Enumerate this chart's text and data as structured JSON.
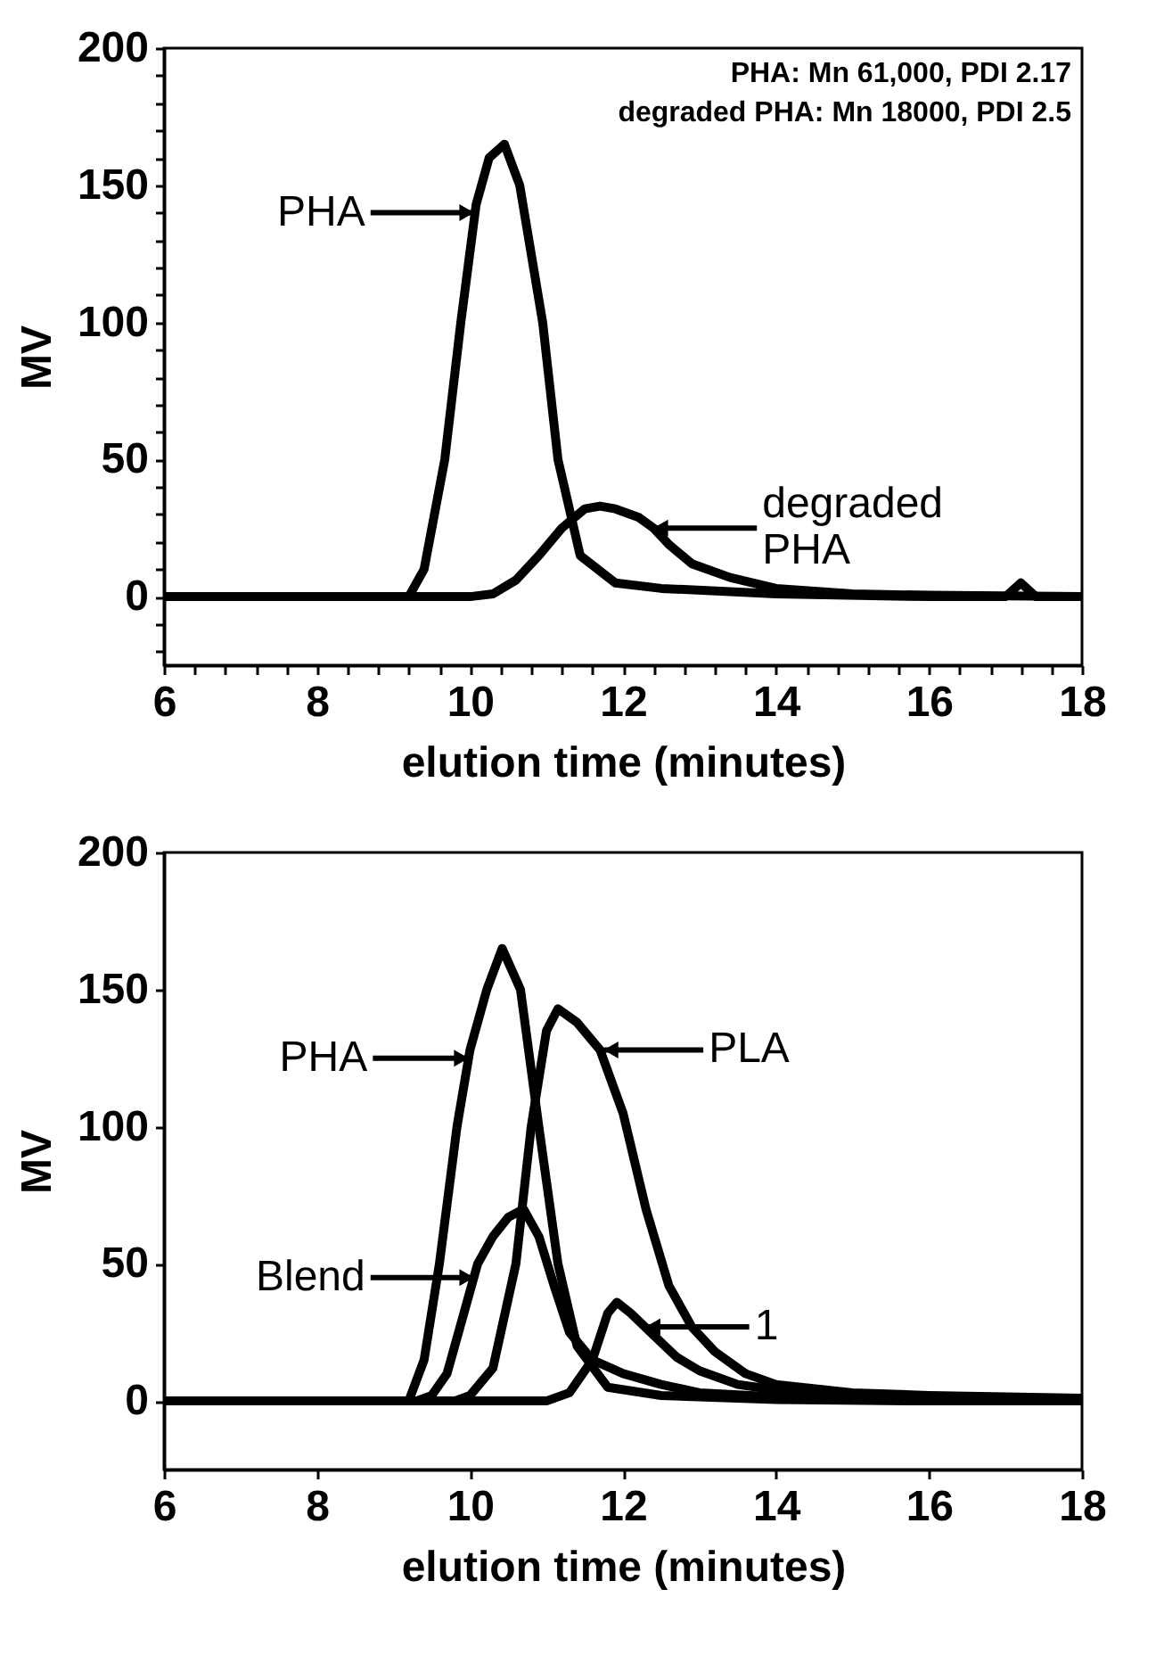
{
  "chart_data": [
    {
      "type": "line",
      "xlabel": "elution time (minutes)",
      "ylabel": "MV",
      "xlim": [
        6,
        18
      ],
      "ylim": [
        -25,
        200
      ],
      "xticks": [
        6,
        {
          "value": 6.4,
          "label": null
        },
        {
          "value": 6.8,
          "label": null
        },
        {
          "value": 7.2,
          "label": null
        },
        {
          "value": 7.6,
          "label": null
        },
        8,
        {
          "value": 8.4,
          "label": null
        },
        {
          "value": 8.8,
          "label": null
        },
        {
          "value": 9.2,
          "label": null
        },
        {
          "value": 9.6,
          "label": null
        },
        10,
        {
          "value": 10.4,
          "label": null
        },
        {
          "value": 10.8,
          "label": null
        },
        {
          "value": 11.2,
          "label": null
        },
        {
          "value": 11.6,
          "label": null
        },
        12,
        {
          "value": 12.4,
          "label": null
        },
        {
          "value": 12.8,
          "label": null
        },
        {
          "value": 13.2,
          "label": null
        },
        {
          "value": 13.6,
          "label": null
        },
        14,
        {
          "value": 14.4,
          "label": null
        },
        {
          "value": 14.8,
          "label": null
        },
        {
          "value": 15.2,
          "label": null
        },
        {
          "value": 15.6,
          "label": null
        },
        16,
        {
          "value": 16.4,
          "label": null
        },
        {
          "value": 16.8,
          "label": null
        },
        {
          "value": 17.2,
          "label": null
        },
        {
          "value": 17.6,
          "label": null
        },
        18
      ],
      "yticks": [
        {
          "value": -20,
          "label": null
        },
        {
          "value": -10,
          "label": null
        },
        0,
        {
          "value": 10,
          "label": null
        },
        {
          "value": 20,
          "label": null
        },
        {
          "value": 30,
          "label": null
        },
        {
          "value": 40,
          "label": null
        },
        50,
        {
          "value": 60,
          "label": null
        },
        {
          "value": 70,
          "label": null
        },
        {
          "value": 80,
          "label": null
        },
        {
          "value": 90,
          "label": null
        },
        100,
        {
          "value": 110,
          "label": null
        },
        {
          "value": 120,
          "label": null
        },
        {
          "value": 130,
          "label": null
        },
        {
          "value": 140,
          "label": null
        },
        150,
        {
          "value": 160,
          "label": null
        },
        {
          "value": 170,
          "label": null
        },
        {
          "value": 180,
          "label": null
        },
        {
          "value": 190,
          "label": null
        },
        200
      ],
      "line_style": "solid",
      "series": [
        {
          "color": "#000000",
          "x": [
            6,
            9.2,
            9.4,
            9.67,
            9.88,
            10.08,
            10.25,
            10.45,
            10.65,
            10.95,
            11.15,
            11.44,
            11.9,
            12.5,
            14,
            16,
            17.0,
            17.2,
            17.4,
            18
          ],
          "values": [
            0,
            0,
            10,
            50,
            100,
            143,
            160,
            165,
            150,
            100,
            50,
            15,
            5,
            3,
            1,
            0,
            0,
            5,
            0,
            0
          ]
        },
        {
          "color": "#000000",
          "x": [
            6,
            10.0,
            10.3,
            10.6,
            10.9,
            11.2,
            11.5,
            11.7,
            11.9,
            12.2,
            12.4,
            12.6,
            12.9,
            13.4,
            14,
            15,
            16,
            18
          ],
          "values": [
            0,
            0,
            1,
            6,
            15,
            25,
            32,
            33,
            32,
            29,
            25,
            19,
            12,
            7,
            3,
            1,
            0.5,
            0
          ]
        }
      ],
      "annotations": [
        "PHA: Mn 61,000, PDI 2.17",
        "degraded PHA: Mn 18000, PDI 2.5",
        {
          "text": "PHA",
          "x": 10.05,
          "y": 140
        },
        {
          "text": "degraded\nPHA",
          "x": 12.4,
          "y": 25
        }
      ]
    },
    {
      "type": "line",
      "xlabel": "elution time (minutes)",
      "ylabel": "MV",
      "xlim": [
        6,
        18
      ],
      "ylim": [
        -25,
        200
      ],
      "xticks": [
        6,
        8,
        10,
        12,
        14,
        16,
        18
      ],
      "yticks": [
        0,
        50,
        100,
        150,
        200
      ],
      "line_style": "solid",
      "series": [
        {
          "color": "#000000",
          "x": [
            6,
            9.2,
            9.4,
            9.6,
            9.83,
            10.0,
            10.22,
            10.42,
            10.66,
            10.9,
            11.15,
            11.4,
            11.8,
            12.5,
            14,
            16,
            18
          ],
          "values": [
            0,
            0,
            15,
            50,
            100,
            128,
            150,
            165,
            150,
            100,
            50,
            20,
            5,
            2,
            0.5,
            0,
            0
          ]
        },
        {
          "color": "#000000",
          "x": [
            6,
            9.8,
            10.0,
            10.3,
            10.6,
            10.8,
            11.0,
            11.15,
            11.4,
            11.7,
            12.0,
            12.3,
            12.6,
            12.9,
            13.2,
            13.6,
            14,
            15,
            16,
            18
          ],
          "values": [
            0,
            0,
            2,
            12,
            50,
            100,
            135,
            143,
            138,
            128,
            105,
            70,
            42,
            27,
            18,
            10,
            6,
            3,
            2,
            1
          ]
        },
        {
          "color": "#000000",
          "x": [
            6,
            9.3,
            9.5,
            9.7,
            9.9,
            10.1,
            10.3,
            10.5,
            10.7,
            10.9,
            11.1,
            11.3,
            11.6,
            12,
            12.5,
            13,
            14,
            16,
            18
          ],
          "values": [
            0,
            0,
            2,
            10,
            30,
            50,
            60,
            67,
            70,
            60,
            42,
            25,
            15,
            10,
            6,
            3,
            1.5,
            0.5,
            0
          ]
        },
        {
          "color": "#000000",
          "x": [
            6,
            11.0,
            11.3,
            11.6,
            11.8,
            11.92,
            12.1,
            12.4,
            12.7,
            13,
            13.5,
            14,
            15,
            16,
            18
          ],
          "values": [
            0,
            0,
            3,
            15,
            32,
            36,
            32,
            24,
            16,
            11,
            6,
            4,
            2,
            1,
            0.5
          ]
        }
      ],
      "annotations": [
        {
          "text": "PHA",
          "x": 9.98,
          "y": 125
        },
        {
          "text": "PLA",
          "x": 11.75,
          "y": 128
        },
        {
          "text": "Blend",
          "x": 10.05,
          "y": 45
        },
        {
          "text": "1",
          "x": 12.3,
          "y": 27
        }
      ]
    }
  ]
}
